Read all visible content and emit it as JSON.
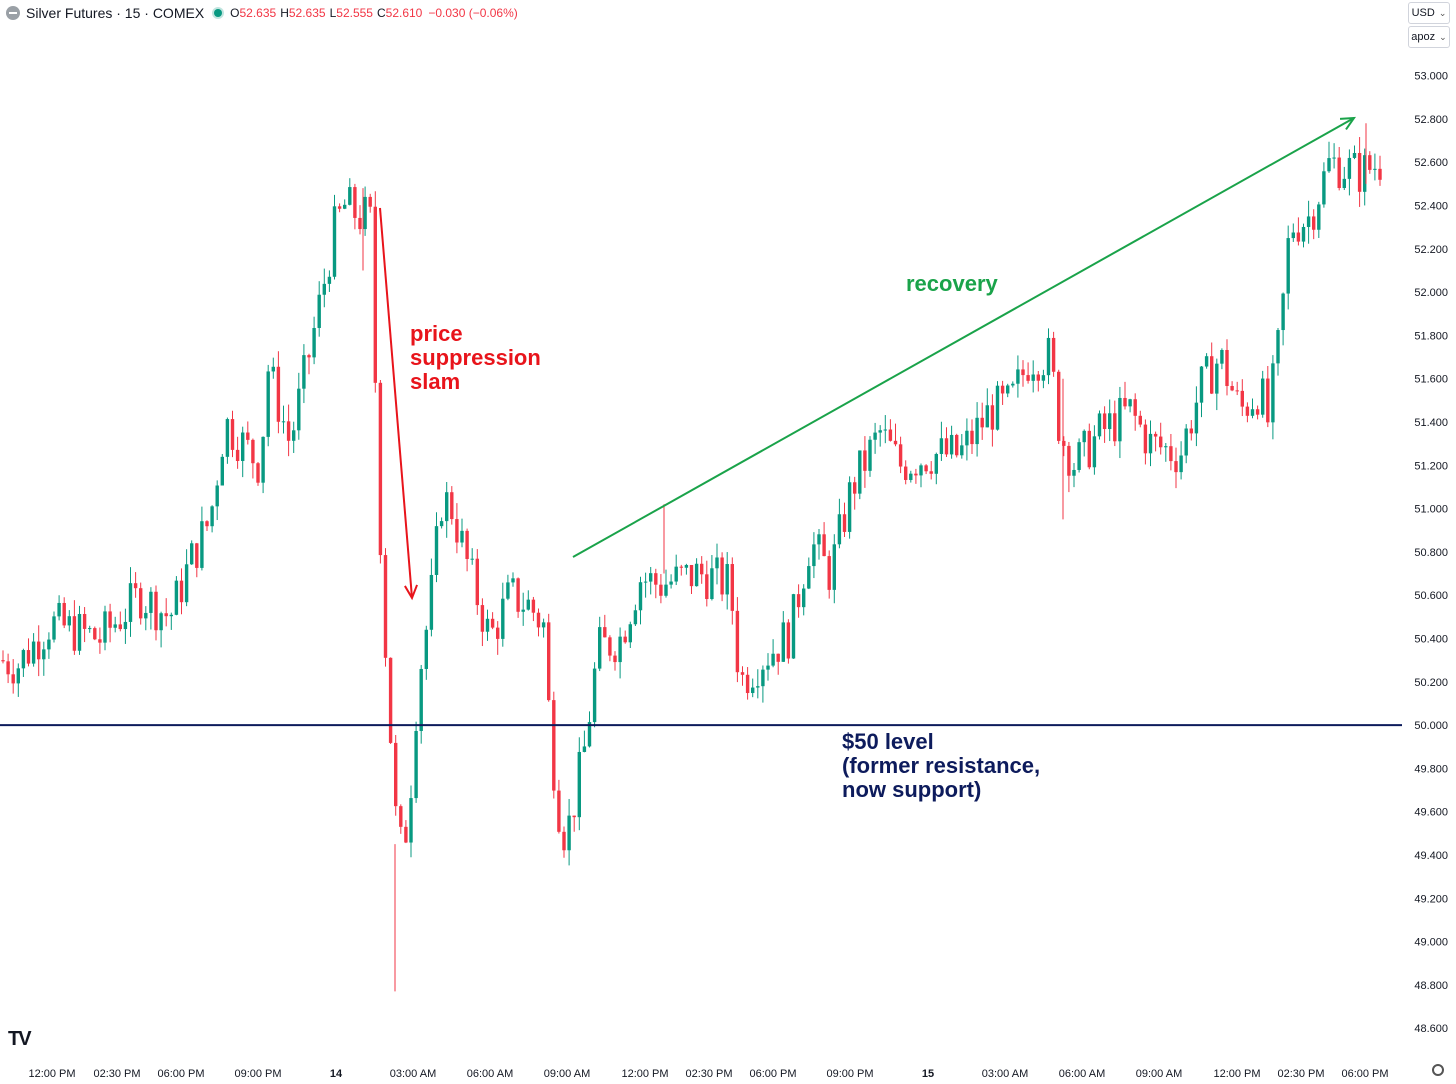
{
  "header": {
    "symbol": "Silver Futures · 15 · COMEX",
    "o_label": "O",
    "o_value": "52.635",
    "h_label": "H",
    "h_value": "52.635",
    "l_label": "L",
    "l_value": "52.555",
    "c_label": "C",
    "c_value": "52.610",
    "change": "−0.030 (−0.06%)"
  },
  "controls": {
    "currency": "USD",
    "unit": "apoz"
  },
  "annotations": {
    "slam": "price\nsuppression\nslam",
    "recovery": "recovery",
    "level": "$50 level\n(former resistance,\nnow support)"
  },
  "branding": {
    "logo": "TV"
  },
  "colors": {
    "up": "#089981",
    "down": "#f23645",
    "slam": "#e8141b",
    "recovery": "#1aa34a",
    "level": "#0d1b5c"
  },
  "chart_data": {
    "type": "candlestick",
    "title": "Silver Futures · 15 · COMEX",
    "ylim": [
      48.55,
      53.15
    ],
    "y_ticks": [
      "53.000",
      "52.800",
      "52.600",
      "52.400",
      "52.200",
      "52.000",
      "51.800",
      "51.600",
      "51.400",
      "51.200",
      "51.000",
      "50.800",
      "50.600",
      "50.400",
      "50.200",
      "50.000",
      "49.800",
      "49.600",
      "49.400",
      "49.200",
      "49.000",
      "48.800",
      "48.600"
    ],
    "x_ticks": [
      "12:00 PM",
      "02:30 PM",
      "06:00 PM",
      "09:00 PM",
      "14",
      "03:00 AM",
      "06:00 AM",
      "09:00 AM",
      "12:00 PM",
      "02:30 PM",
      "06:00 PM",
      "09:00 PM",
      "15",
      "03:00 AM",
      "06:00 AM",
      "09:00 AM",
      "12:00 PM",
      "02:30 PM",
      "06:00 PM"
    ],
    "reference_line": {
      "value": 50.0
    },
    "trend_arrows": [
      {
        "name": "slam",
        "from": [
          52.4,
          "14 ~01:00 AM"
        ],
        "to": [
          50.6,
          "14 ~02:30 AM"
        ]
      },
      {
        "name": "recovery",
        "from": [
          50.78,
          "14 ~09:30 AM"
        ],
        "to": [
          52.82,
          "15 ~06:00 PM"
        ]
      }
    ],
    "path": [
      [
        0,
        50.3
      ],
      [
        18,
        50.28
      ],
      [
        50,
        50.47
      ],
      [
        100,
        50.4
      ],
      [
        140,
        50.6
      ],
      [
        170,
        50.5
      ],
      [
        190,
        50.75
      ],
      [
        210,
        50.95
      ],
      [
        225,
        51.4
      ],
      [
        260,
        51.2
      ],
      [
        268,
        51.65
      ],
      [
        290,
        51.3
      ],
      [
        320,
        51.95
      ],
      [
        335,
        52.3
      ],
      [
        345,
        52.4
      ],
      [
        360,
        52.35
      ],
      [
        370,
        52.35
      ],
      [
        382,
        50.65
      ],
      [
        390,
        50.0
      ],
      [
        398,
        49.4
      ],
      [
        408,
        49.55
      ],
      [
        418,
        50.2
      ],
      [
        430,
        50.55
      ],
      [
        442,
        51.05
      ],
      [
        452,
        51.0
      ],
      [
        470,
        50.7
      ],
      [
        490,
        50.4
      ],
      [
        510,
        50.6
      ],
      [
        530,
        50.55
      ],
      [
        545,
        50.45
      ],
      [
        550,
        49.95
      ],
      [
        562,
        49.5
      ],
      [
        570,
        49.55
      ],
      [
        585,
        49.9
      ],
      [
        598,
        50.35
      ],
      [
        620,
        50.4
      ],
      [
        640,
        50.68
      ],
      [
        660,
        50.65
      ],
      [
        700,
        50.7
      ],
      [
        730,
        50.65
      ],
      [
        740,
        50.2
      ],
      [
        760,
        50.3
      ],
      [
        790,
        50.42
      ],
      [
        810,
        50.85
      ],
      [
        830,
        50.7
      ],
      [
        852,
        51.1
      ],
      [
        880,
        51.35
      ],
      [
        900,
        51.2
      ],
      [
        930,
        51.25
      ],
      [
        960,
        51.25
      ],
      [
        990,
        51.45
      ],
      [
        1010,
        51.48
      ],
      [
        1030,
        51.7
      ],
      [
        1050,
        51.7
      ],
      [
        1060,
        51.35
      ],
      [
        1075,
        51.2
      ],
      [
        1100,
        51.35
      ],
      [
        1130,
        51.45
      ],
      [
        1150,
        51.3
      ],
      [
        1180,
        51.25
      ],
      [
        1200,
        51.55
      ],
      [
        1220,
        51.7
      ],
      [
        1240,
        51.45
      ],
      [
        1260,
        51.55
      ],
      [
        1268,
        51.4
      ],
      [
        1280,
        51.8
      ],
      [
        1290,
        52.3
      ],
      [
        1310,
        52.35
      ],
      [
        1330,
        52.6
      ],
      [
        1360,
        52.55
      ],
      [
        1385,
        52.61
      ]
    ]
  }
}
